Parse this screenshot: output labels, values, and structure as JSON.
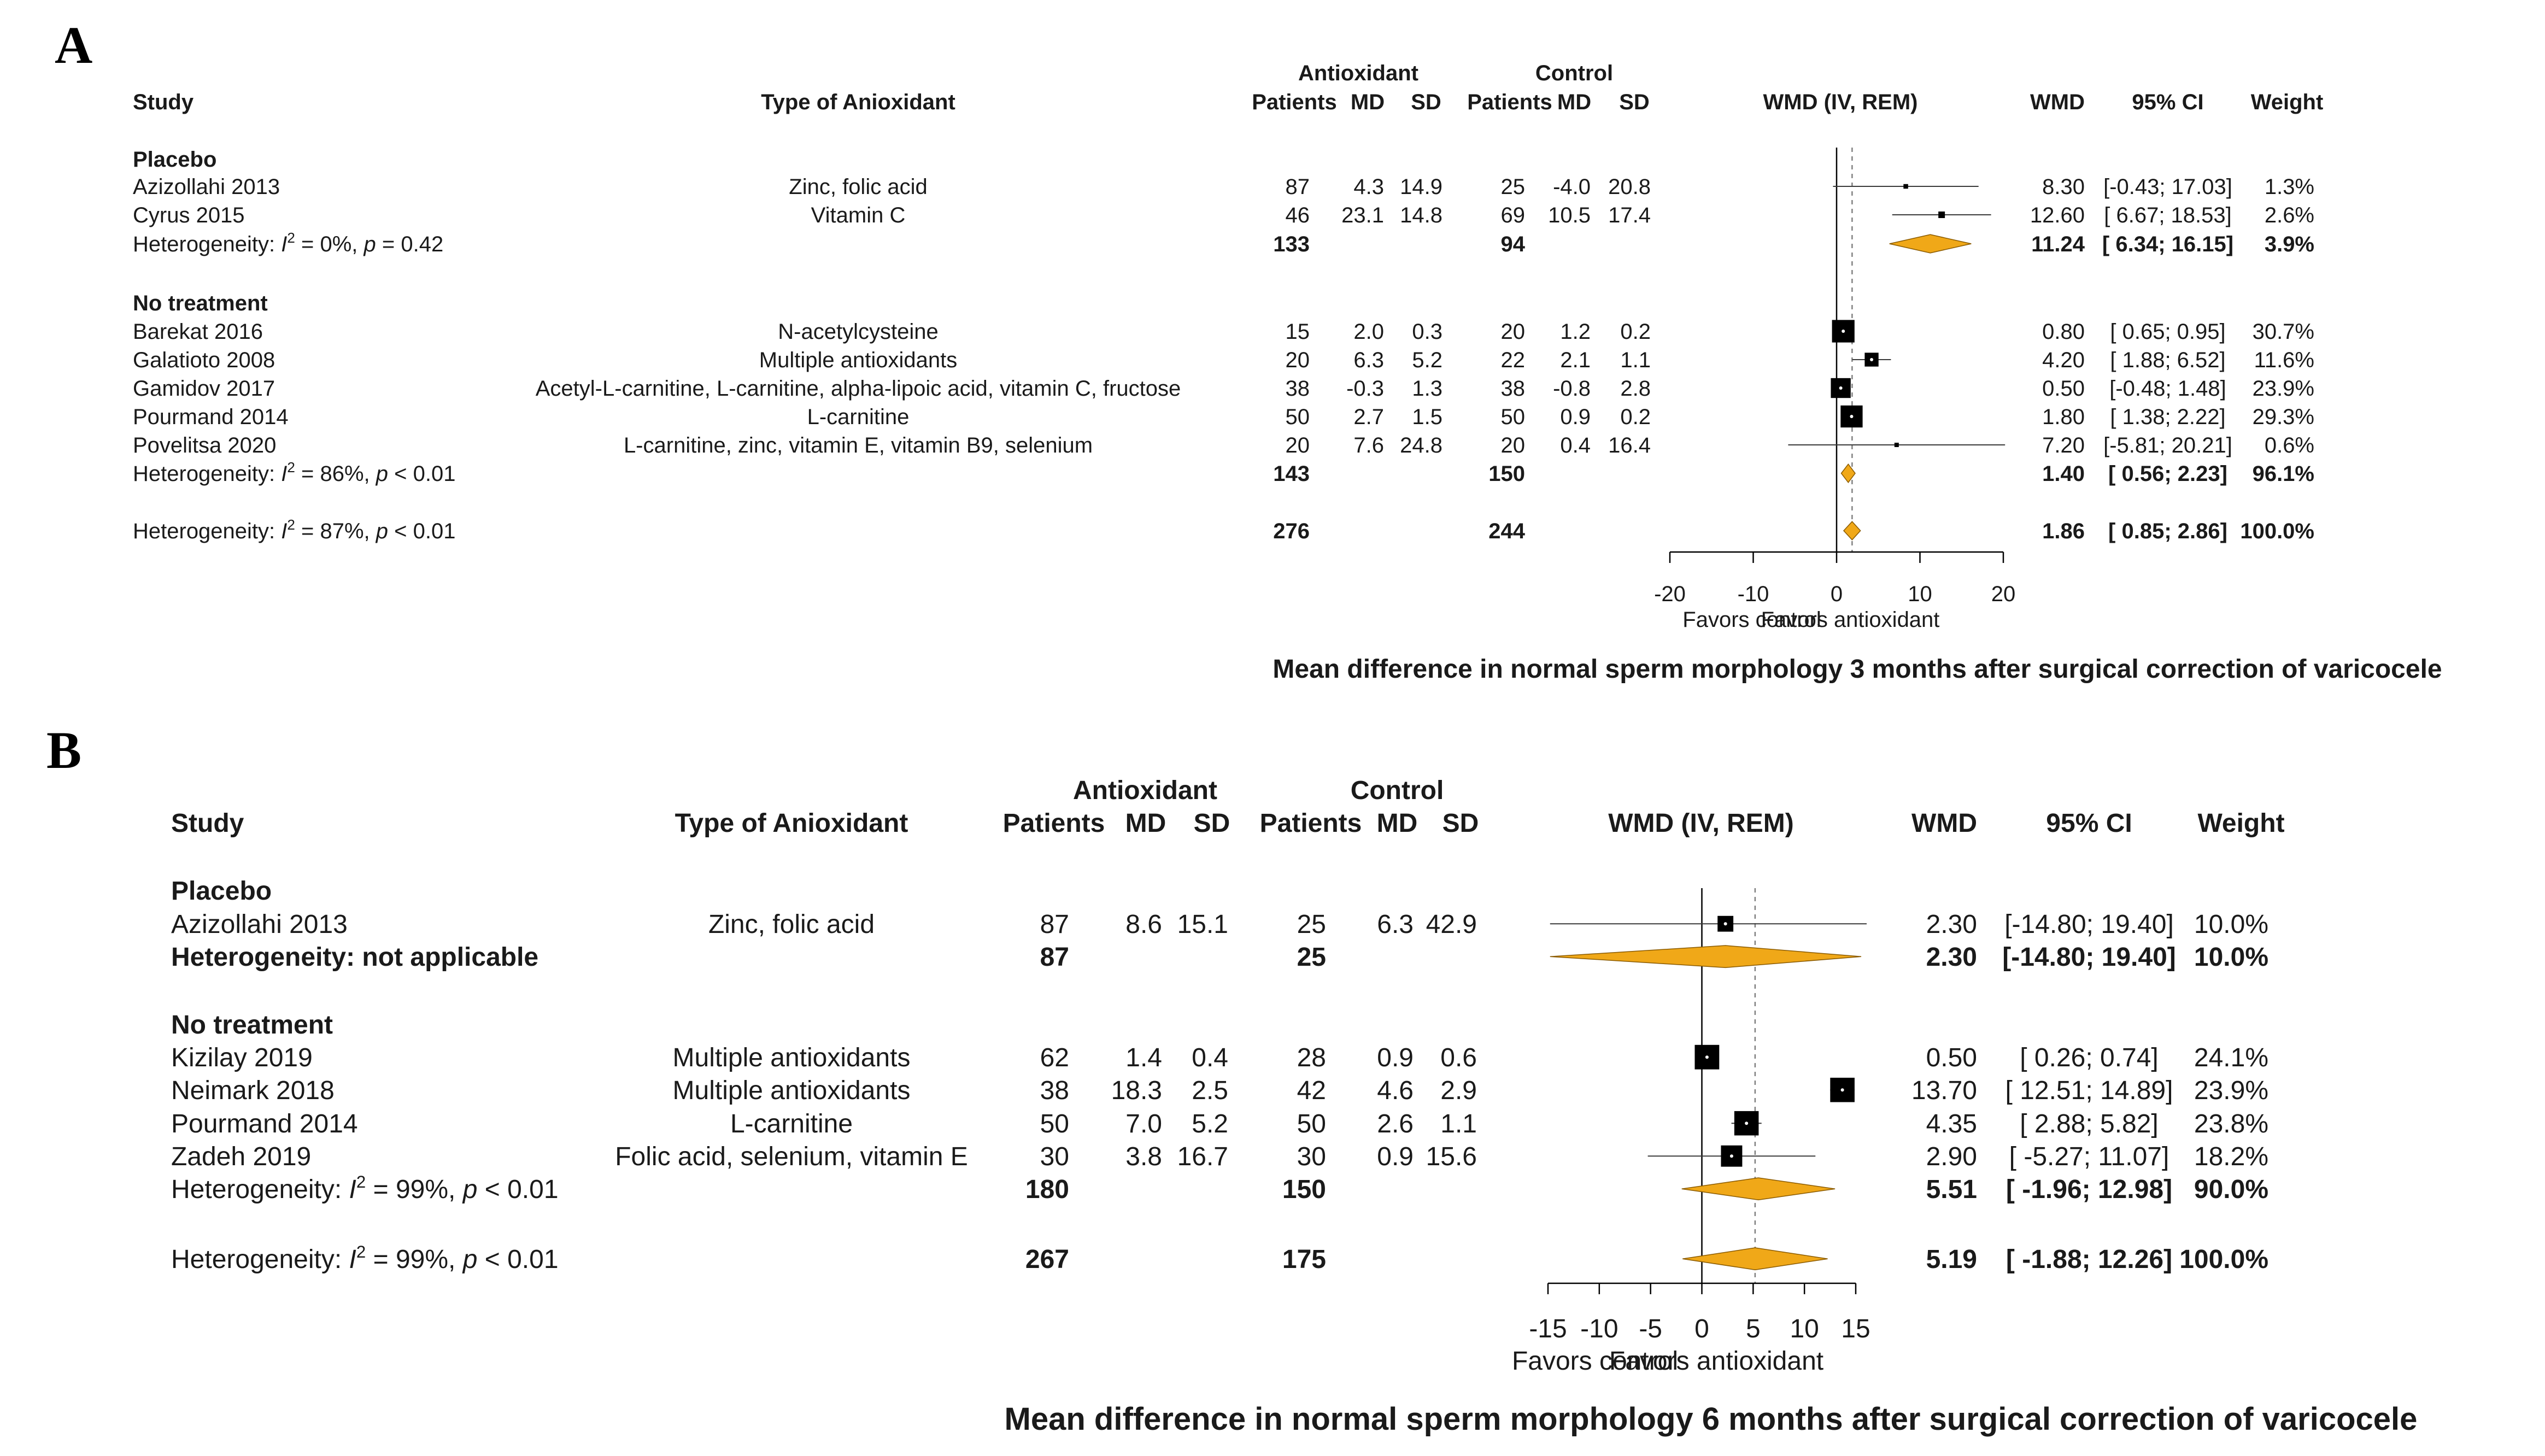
{
  "chart_data": [
    {
      "panel_label": "A",
      "type": "forest",
      "title": "Mean difference in normal sperm morphology 3 months after surgical correction of varicocele",
      "headers": {
        "study": "Study",
        "type": "Type of Anioxidant",
        "group1": "Antioxidant",
        "group2": "Control",
        "patients": "Patients",
        "md": "MD",
        "sd": "SD",
        "plot": "WMD (IV, REM)",
        "wmd": "WMD",
        "ci": "95% CI",
        "weight": "Weight"
      },
      "groups": [
        {
          "name": "Placebo",
          "studies": [
            {
              "study": "Azizollahi  2013",
              "type": "Zinc, folic acid",
              "ant_n": "87",
              "ant_md": "4.3",
              "ant_sd": "14.9",
              "ctl_n": "25",
              "ctl_md": "-4.0",
              "ctl_sd": "20.8",
              "wmd": 8.3,
              "lo": -0.43,
              "hi": 17.03,
              "wmd_text": "8.30",
              "ci_text": "[-0.43; 17.03]",
              "weight_text": "1.3%"
            },
            {
              "study": "Cyrus 2015",
              "type": "Vitamin C",
              "ant_n": "46",
              "ant_md": "23.1",
              "ant_sd": "14.8",
              "ctl_n": "69",
              "ctl_md": "10.5",
              "ctl_sd": "17.4",
              "wmd": 12.6,
              "lo": 6.67,
              "hi": 18.53,
              "wmd_text": "12.60",
              "ci_text": "[ 6.67; 18.53]",
              "weight_text": "2.6%"
            }
          ],
          "summary": {
            "label_prefix": "Heterogeneity: ",
            "i2_text": " = 0%, ",
            "p_text": " = 0.42",
            "ant_n": "133",
            "ctl_n": "94",
            "wmd": 11.24,
            "lo": 6.34,
            "hi": 16.15,
            "wmd_text": "11.24",
            "ci_text": "[ 6.34; 16.15]",
            "weight_text": "3.9%"
          }
        },
        {
          "name": "No treatment",
          "studies": [
            {
              "study": "Barekat 2016",
              "type": "N-acetylcysteine",
              "ant_n": "15",
              "ant_md": "2.0",
              "ant_sd": "0.3",
              "ctl_n": "20",
              "ctl_md": "1.2",
              "ctl_sd": "0.2",
              "wmd": 0.8,
              "lo": 0.65,
              "hi": 0.95,
              "wmd_text": "0.80",
              "ci_text": "[ 0.65; 0.95]",
              "weight_text": "30.7%"
            },
            {
              "study": "Galatioto 2008",
              "type": "Multiple antioxidants",
              "ant_n": "20",
              "ant_md": "6.3",
              "ant_sd": "5.2",
              "ctl_n": "22",
              "ctl_md": "2.1",
              "ctl_sd": "1.1",
              "wmd": 4.2,
              "lo": 1.88,
              "hi": 6.52,
              "wmd_text": "4.20",
              "ci_text": "[ 1.88; 6.52]",
              "weight_text": "11.6%"
            },
            {
              "study": "Gamidov 2017",
              "type": "Acetyl-L-carnitine, L-carnitine, alpha-lipoic acid, vitamin C, fructose",
              "ant_n": "38",
              "ant_md": "-0.3",
              "ant_sd": "1.3",
              "ctl_n": "38",
              "ctl_md": "-0.8",
              "ctl_sd": "2.8",
              "wmd": 0.5,
              "lo": -0.48,
              "hi": 1.48,
              "wmd_text": "0.50",
              "ci_text": "[-0.48; 1.48]",
              "weight_text": "23.9%"
            },
            {
              "study": "Pourmand 2014",
              "type": "L-carnitine",
              "ant_n": "50",
              "ant_md": "2.7",
              "ant_sd": "1.5",
              "ctl_n": "50",
              "ctl_md": "0.9",
              "ctl_sd": "0.2",
              "wmd": 1.8,
              "lo": 1.38,
              "hi": 2.22,
              "wmd_text": "1.80",
              "ci_text": "[ 1.38; 2.22]",
              "weight_text": "29.3%"
            },
            {
              "study": "Povelitsa 2020",
              "type": "L-carnitine, zinc, vitamin E, vitamin B9, selenium",
              "ant_n": "20",
              "ant_md": "7.6",
              "ant_sd": "24.8",
              "ctl_n": "20",
              "ctl_md": "0.4",
              "ctl_sd": "16.4",
              "wmd": 7.2,
              "lo": -5.81,
              "hi": 20.21,
              "wmd_text": "7.20",
              "ci_text": "[-5.81; 20.21]",
              "weight_text": "0.6%"
            }
          ],
          "summary": {
            "label_prefix": "Heterogeneity: ",
            "i2_text": " = 86%, ",
            "p_text": " < 0.01",
            "ant_n": "143",
            "ctl_n": "150",
            "wmd": 1.4,
            "lo": 0.56,
            "hi": 2.23,
            "wmd_text": "1.40",
            "ci_text": "[ 0.56; 2.23]",
            "weight_text": "96.1%"
          }
        }
      ],
      "overall": {
        "label_prefix": "Heterogeneity: ",
        "i2_text": " = 87%, ",
        "p_text": " < 0.01",
        "ant_n": "276",
        "ctl_n": "244",
        "wmd": 1.86,
        "lo": 0.85,
        "hi": 2.86,
        "wmd_text": "1.86",
        "ci_text": "[ 0.85; 2.86]",
        "weight_text": "100.0%"
      },
      "axis": {
        "min": -20,
        "max": 20,
        "ticks": [
          "-20",
          "-10",
          "0",
          "10",
          "20"
        ],
        "label_left": "Favors control",
        "label_right": "Favors antioxidant"
      }
    },
    {
      "panel_label": "B",
      "type": "forest",
      "title": "Mean difference in normal sperm morphology 6 months after surgical correction of varicocele",
      "headers": {
        "study": "Study",
        "type": "Type of Anioxidant",
        "group1": "Antioxidant",
        "group2": "Control",
        "patients": "Patients",
        "md": "MD",
        "sd": "SD",
        "plot": "WMD (IV, REM)",
        "wmd": "WMD",
        "ci": "95% CI",
        "weight": "Weight"
      },
      "groups": [
        {
          "name": "Placebo",
          "studies": [
            {
              "study": "Azizollahi  2013",
              "type": "Zinc, folic acid",
              "ant_n": "87",
              "ant_md": "8.6",
              "ant_sd": "15.1",
              "ctl_n": "25",
              "ctl_md": "6.3",
              "ctl_sd": "42.9",
              "wmd": 2.3,
              "lo": -14.8,
              "hi": 19.4,
              "wmd_text": "2.30",
              "ci_text": "[-14.80; 19.40]",
              "weight_text": "10.0%"
            }
          ],
          "summary": {
            "label_plain": "Heterogeneity: not applicable",
            "ant_n": "87",
            "ctl_n": "25",
            "wmd": 2.3,
            "lo": -14.8,
            "hi": 19.4,
            "wmd_text": "2.30",
            "ci_text": "[-14.80; 19.40]",
            "weight_text": "10.0%"
          }
        },
        {
          "name": "No treatment",
          "studies": [
            {
              "study": "Kizilay 2019",
              "type": "Multiple antioxidants",
              "ant_n": "62",
              "ant_md": "1.4",
              "ant_sd": "0.4",
              "ctl_n": "28",
              "ctl_md": "0.9",
              "ctl_sd": "0.6",
              "wmd": 0.5,
              "lo": 0.26,
              "hi": 0.74,
              "wmd_text": "0.50",
              "ci_text": "[ 0.26; 0.74]",
              "weight_text": "24.1%"
            },
            {
              "study": "Neimark 2018",
              "type": "Multiple antioxidants",
              "ant_n": "38",
              "ant_md": "18.3",
              "ant_sd": "2.5",
              "ctl_n": "42",
              "ctl_md": "4.6",
              "ctl_sd": "2.9",
              "wmd": 13.7,
              "lo": 12.51,
              "hi": 14.89,
              "wmd_text": "13.70",
              "ci_text": "[ 12.51; 14.89]",
              "weight_text": "23.9%"
            },
            {
              "study": "Pourmand 2014",
              "type": "L-carnitine",
              "ant_n": "50",
              "ant_md": "7.0",
              "ant_sd": "5.2",
              "ctl_n": "50",
              "ctl_md": "2.6",
              "ctl_sd": "1.1",
              "wmd": 4.35,
              "lo": 2.88,
              "hi": 5.82,
              "wmd_text": "4.35",
              "ci_text": "[ 2.88; 5.82]",
              "weight_text": "23.8%"
            },
            {
              "study": "Zadeh 2019",
              "type": "Folic acid, selenium, vitamin E",
              "ant_n": "30",
              "ant_md": "3.8",
              "ant_sd": "16.7",
              "ctl_n": "30",
              "ctl_md": "0.9",
              "ctl_sd": "15.6",
              "wmd": 2.9,
              "lo": -5.27,
              "hi": 11.07,
              "wmd_text": "2.90",
              "ci_text": "[ -5.27; 11.07]",
              "weight_text": "18.2%"
            }
          ],
          "summary": {
            "label_prefix": "Heterogeneity: ",
            "i2_text": " = 99%, ",
            "p_text": " < 0.01",
            "ant_n": "180",
            "ctl_n": "150",
            "wmd": 5.51,
            "lo": -1.96,
            "hi": 12.98,
            "wmd_text": "5.51",
            "ci_text": "[ -1.96; 12.98]",
            "weight_text": "90.0%"
          }
        }
      ],
      "overall": {
        "label_prefix": "Heterogeneity: ",
        "i2_text": " = 99%, ",
        "p_text": " < 0.01",
        "ant_n": "267",
        "ctl_n": "175",
        "wmd": 5.19,
        "lo": -1.88,
        "hi": 12.26,
        "wmd_text": "5.19",
        "ci_text": "[ -1.88; 12.26]",
        "weight_text": "100.0%"
      },
      "axis": {
        "min": -15,
        "max": 15,
        "ticks": [
          "-15",
          "-10",
          "-5",
          "0",
          "5",
          "10",
          "15"
        ],
        "label_left": "Favors control",
        "label_right": "Favors antioxidant"
      }
    }
  ],
  "colors": {
    "diamond": "#f0a818",
    "diamond_stroke": "#8a5a00",
    "square": "#000000",
    "line": "#3a3a3a",
    "ref_line": "#808080"
  }
}
